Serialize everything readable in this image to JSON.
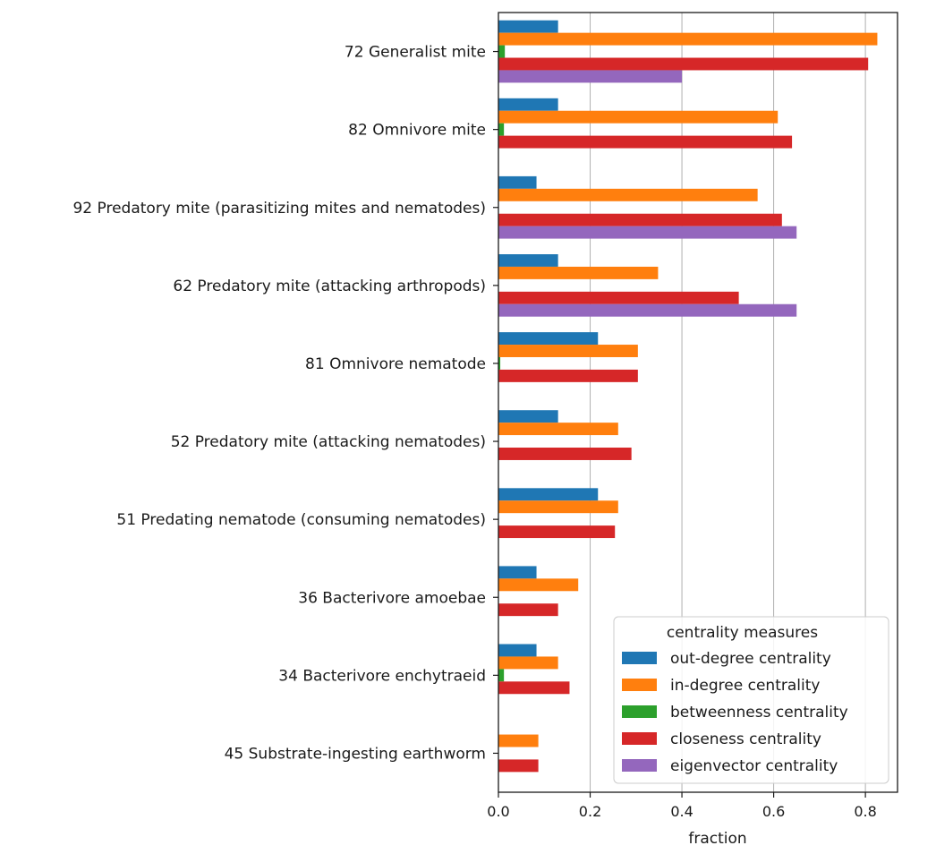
{
  "chart_data": {
    "type": "bar",
    "orientation": "horizontal",
    "categories": [
      "72 Generalist mite",
      "82 Omnivore mite",
      "92 Predatory mite (parasitizing mites and nematodes)",
      "62 Predatory mite (attacking arthropods)",
      "81 Omnivore nematode",
      "52 Predatory mite (attacking nematodes)",
      "51 Predating nematode (consuming nematodes)",
      "36 Bacterivore amoebae",
      "34 Bacterivore enchytraeid",
      "45 Substrate-ingesting earthworm"
    ],
    "series": [
      {
        "name": "out-degree centrality",
        "color": "#1f77b4",
        "values": [
          0.13,
          0.13,
          0.083,
          0.13,
          0.217,
          0.13,
          0.217,
          0.083,
          0.083,
          0.0
        ]
      },
      {
        "name": "in-degree centrality",
        "color": "#ff7f0e",
        "values": [
          0.826,
          0.609,
          0.565,
          0.348,
          0.304,
          0.261,
          0.261,
          0.174,
          0.13,
          0.087
        ]
      },
      {
        "name": "betweenness centrality",
        "color": "#2ca02c",
        "values": [
          0.014,
          0.012,
          0.0,
          0.0,
          0.004,
          0.0,
          0.0,
          0.0,
          0.012,
          0.0
        ]
      },
      {
        "name": "closeness centrality",
        "color": "#d62728",
        "values": [
          0.806,
          0.64,
          0.618,
          0.524,
          0.304,
          0.29,
          0.254,
          0.13,
          0.155,
          0.087
        ]
      },
      {
        "name": "eigenvector centrality",
        "color": "#9467bd",
        "values": [
          0.4,
          0.0,
          0.65,
          0.65,
          0.0,
          0.0,
          0.0,
          0.0,
          0.0,
          0.0
        ]
      }
    ],
    "xlabel": "fraction",
    "ylabel": "",
    "xlim": [
      0.0,
      0.87
    ],
    "xticks": [
      0.0,
      0.2,
      0.4,
      0.6,
      0.8
    ],
    "xtick_labels": [
      "0.0",
      "0.2",
      "0.4",
      "0.6",
      "0.8"
    ],
    "grid": "vertical",
    "legend": {
      "title": "centrality measures",
      "placement": "bottom-right"
    }
  }
}
